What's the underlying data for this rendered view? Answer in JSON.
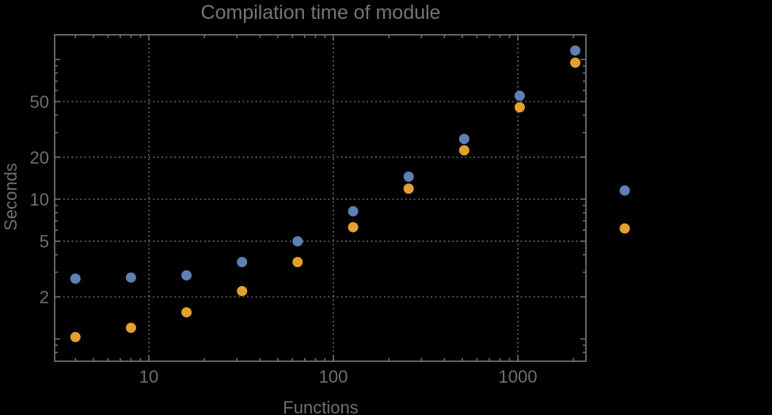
{
  "chart_data": {
    "type": "scatter",
    "title": "Compilation time of module",
    "xlabel": "Functions",
    "ylabel": "Seconds",
    "xscale": "log",
    "yscale": "log",
    "xlim": [
      3.1,
      2340
    ],
    "ylim": [
      0.69,
      150
    ],
    "x_tick_labels": [
      "10",
      "100",
      "1000"
    ],
    "x_tick_values": [
      10,
      100,
      1000
    ],
    "y_tick_labels": [
      "2",
      "5",
      "10",
      "20",
      "50"
    ],
    "y_tick_values": [
      2,
      5,
      10,
      20,
      50
    ],
    "grid": {
      "style": "dotted",
      "color": "#636363",
      "x_values": [
        10,
        100,
        1000
      ],
      "y_values": [
        2,
        5,
        10,
        20,
        50
      ]
    },
    "x": [
      4,
      8,
      16,
      32,
      64,
      128,
      256,
      512,
      1024,
      2048
    ],
    "series": [
      {
        "name": "series-1",
        "marker": "disk",
        "color": "#5E81B5",
        "values": [
          2.7,
          2.75,
          2.85,
          3.55,
          5.0,
          8.2,
          14.5,
          27,
          55,
          116
        ]
      },
      {
        "name": "series-2",
        "marker": "disk",
        "color": "#E3A02D",
        "values": [
          1.03,
          1.2,
          1.55,
          2.2,
          3.55,
          6.3,
          11.9,
          22.4,
          45.5,
          95
        ]
      }
    ],
    "legend": {
      "position": "outside-right",
      "labels_visible": false,
      "markers": [
        {
          "series": "series-1",
          "color": "#5E81B5"
        },
        {
          "series": "series-2",
          "color": "#E3A02D"
        }
      ]
    },
    "colors": {
      "background": "#000000",
      "frame": "#6e6e6e",
      "tick_label": "#6f6f6f",
      "title": "#757575"
    }
  }
}
